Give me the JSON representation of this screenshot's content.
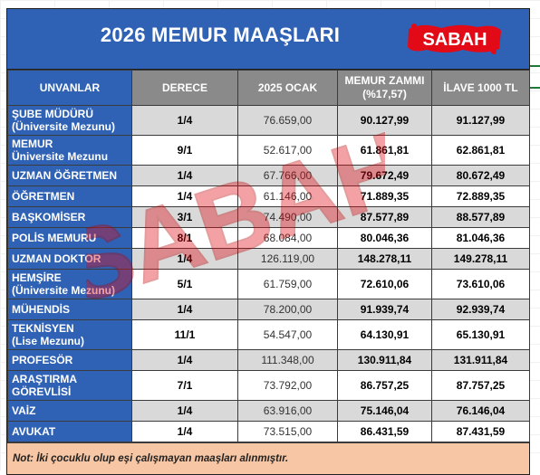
{
  "title": "2026 MEMUR MAAŞLARI",
  "logo_text": "SABAH",
  "watermark_text": "SABAH",
  "colors": {
    "header_blue": "#2f62b5",
    "header_grey": "#8a8a8a",
    "row_grey": "#d9d9d9",
    "note_bg": "#f7c6a4",
    "logo_red": "#e30a17"
  },
  "columns": {
    "unvan": "UNVANLAR",
    "derece": "DERECE",
    "ocak": "2025 OCAK",
    "zam_line1": "MEMUR ZAMMI",
    "zam_line2": "(%17,57)",
    "ilave": "İLAVE 1000 TL"
  },
  "rows": [
    {
      "unvan": [
        "ŞUBE MÜDÜRÜ",
        "(Üniversite Mezunu)"
      ],
      "derece": "1/4",
      "ocak": "76.659,00",
      "zam": "90.127,99",
      "ilave": "91.127,99"
    },
    {
      "unvan": [
        "MEMUR",
        "Üniversite Mezunu"
      ],
      "derece": "9/1",
      "ocak": "52.617,00",
      "zam": "61.861,81",
      "ilave": "62.861,81"
    },
    {
      "unvan": [
        "UZMAN ÖĞRETMEN"
      ],
      "derece": "1/4",
      "ocak": "67.766,00",
      "zam": "79.672,49",
      "ilave": "80.672,49"
    },
    {
      "unvan": [
        "ÖĞRETMEN"
      ],
      "derece": "1/4",
      "ocak": "61.146,00",
      "zam": "71.889,35",
      "ilave": "72.889,35"
    },
    {
      "unvan": [
        "BAŞKOMİSER"
      ],
      "derece": "3/1",
      "ocak": "74.490,00",
      "zam": "87.577,89",
      "ilave": "88.577,89"
    },
    {
      "unvan": [
        "POLİS MEMURU"
      ],
      "derece": "8/1",
      "ocak": "68.084,00",
      "zam": "80.046,36",
      "ilave": "81.046,36"
    },
    {
      "unvan": [
        "UZMAN DOKTOR"
      ],
      "derece": "1/4",
      "ocak": "126.119,00",
      "zam": "148.278,11",
      "ilave": "149.278,11"
    },
    {
      "unvan": [
        "HEMŞİRE",
        "(Üniversite Mezunu)"
      ],
      "derece": "5/1",
      "ocak": "61.759,00",
      "zam": "72.610,06",
      "ilave": "73.610,06"
    },
    {
      "unvan": [
        "MÜHENDİS"
      ],
      "derece": "1/4",
      "ocak": "78.200,00",
      "zam": "91.939,74",
      "ilave": "92.939,74"
    },
    {
      "unvan": [
        "TEKNİSYEN",
        "(Lise Mezunu)"
      ],
      "derece": "11/1",
      "ocak": "54.547,00",
      "zam": "64.130,91",
      "ilave": "65.130,91"
    },
    {
      "unvan": [
        "PROFESÖR"
      ],
      "derece": "1/4",
      "ocak": "111.348,00",
      "zam": "130.911,84",
      "ilave": "131.911,84"
    },
    {
      "unvan": [
        "ARAŞTIRMA",
        "GÖREVLİSİ"
      ],
      "derece": "7/1",
      "ocak": "73.792,00",
      "zam": "86.757,25",
      "ilave": "87.757,25"
    },
    {
      "unvan": [
        "VAİZ"
      ],
      "derece": "1/4",
      "ocak": "63.916,00",
      "zam": "75.146,04",
      "ilave": "76.146,04"
    },
    {
      "unvan": [
        "AVUKAT"
      ],
      "derece": "1/4",
      "ocak": "73.515,00",
      "zam": "86.431,59",
      "ilave": "87.431,59"
    }
  ],
  "note": "Not: İki çocuklu olup eşi çalışmayan maaşları alınmıştır."
}
